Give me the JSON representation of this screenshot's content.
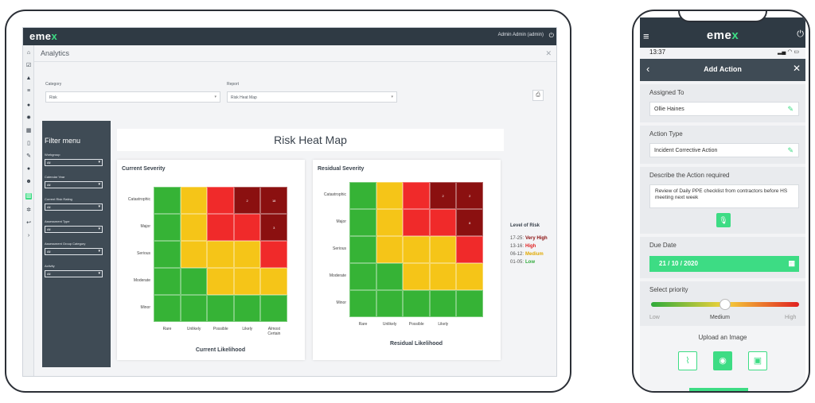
{
  "tablet": {
    "logo": {
      "main": "eme",
      "accent": "x"
    },
    "admin_label": "Admin Admin (admin)",
    "breadcrumb": "Analytics",
    "category_label": "Category",
    "category_value": "Risk",
    "report_label": "Report",
    "report_value": "Risk Heat Map",
    "filter": {
      "title": "Filter menu",
      "fields": [
        {
          "label": "Workgroup",
          "value": "All"
        },
        {
          "label": "Calendar Year",
          "value": "All"
        },
        {
          "label": "Current Risk Rating",
          "value": "All"
        },
        {
          "label": "Assessment Type",
          "value": "All"
        },
        {
          "label": "Assessment Group Category",
          "value": "All"
        },
        {
          "label": "Activity",
          "value": "All"
        }
      ]
    },
    "heatmap_title": "Risk Heat Map",
    "current": {
      "title": "Current Severity",
      "x_label": "Current Likelihood",
      "rows": [
        "Catastrophic",
        "Major",
        "Serious",
        "Moderate",
        "Minor"
      ],
      "cols": [
        "Rare",
        "Unlikely",
        "Possible",
        "Likely",
        "Almost Certain"
      ],
      "colors": [
        [
          "#36b336",
          "#f5c518",
          "#f02a2a",
          "#8b1010",
          "#8b1010"
        ],
        [
          "#36b336",
          "#f5c518",
          "#f02a2a",
          "#f02a2a",
          "#8b1010"
        ],
        [
          "#36b336",
          "#f5c518",
          "#f5c518",
          "#f5c518",
          "#f02a2a"
        ],
        [
          "#36b336",
          "#36b336",
          "#f5c518",
          "#f5c518",
          "#f5c518"
        ],
        [
          "#36b336",
          "#36b336",
          "#36b336",
          "#36b336",
          "#36b336"
        ]
      ],
      "values": [
        [
          "",
          "",
          "",
          "2",
          "18"
        ],
        [
          "",
          "",
          "",
          "",
          "3"
        ],
        [
          "",
          "",
          "",
          "",
          ""
        ],
        [
          "",
          "",
          "",
          "",
          ""
        ],
        [
          "",
          "",
          "",
          "",
          ""
        ]
      ]
    },
    "residual": {
      "title": "Residual Severity",
      "x_label": "Residual Likelihood",
      "rows": [
        "Catastrophic",
        "Major",
        "Serious",
        "Moderate",
        "Minor"
      ],
      "cols": [
        "Rare",
        "Unlikely",
        "Possible",
        "Likely",
        ""
      ],
      "colors": [
        [
          "#36b336",
          "#f5c518",
          "#f02a2a",
          "#8b1010",
          "#8b1010"
        ],
        [
          "#36b336",
          "#f5c518",
          "#f02a2a",
          "#f02a2a",
          "#8b1010"
        ],
        [
          "#36b336",
          "#f5c518",
          "#f5c518",
          "#f5c518",
          "#f02a2a"
        ],
        [
          "#36b336",
          "#36b336",
          "#f5c518",
          "#f5c518",
          "#f5c518"
        ],
        [
          "#36b336",
          "#36b336",
          "#36b336",
          "#36b336",
          "#36b336"
        ]
      ],
      "values": [
        [
          "",
          "",
          "",
          "2",
          "2"
        ],
        [
          "",
          "",
          "",
          "",
          "8"
        ],
        [
          "",
          "",
          "",
          "",
          ""
        ],
        [
          "",
          "",
          "",
          "",
          ""
        ],
        [
          "",
          "",
          "",
          "",
          ""
        ]
      ]
    },
    "legend": {
      "title": "Level of Risk",
      "items": [
        {
          "range": "17-25:",
          "label": "Very High",
          "color": "#8b1010"
        },
        {
          "range": "13-16:",
          "label": "High",
          "color": "#e02020"
        },
        {
          "range": "06-12:",
          "label": "Medium",
          "color": "#e0a800"
        },
        {
          "range": "01-05:",
          "label": "Low",
          "color": "#2eaa3a"
        }
      ]
    }
  },
  "phone": {
    "logo": {
      "main": "eme",
      "accent": "x"
    },
    "time": "13:37",
    "bar_title": "Add Action",
    "assigned_to_label": "Assigned To",
    "assigned_to_value": "Ollie Haines",
    "action_type_label": "Action Type",
    "action_type_value": "Incident Corrective Action",
    "describe_label": "Describe the Action required",
    "describe_value": "Review of Daily PPE checklist from contractors before HS meeting next week",
    "due_date_label": "Due Date",
    "due_date_value": "21 / 10 / 2020",
    "priority_label": "Select priority",
    "priority_low": "Low",
    "priority_medium": "Medium",
    "priority_high": "High",
    "priority_value": 0.5,
    "upload_label": "Upload an Image"
  }
}
